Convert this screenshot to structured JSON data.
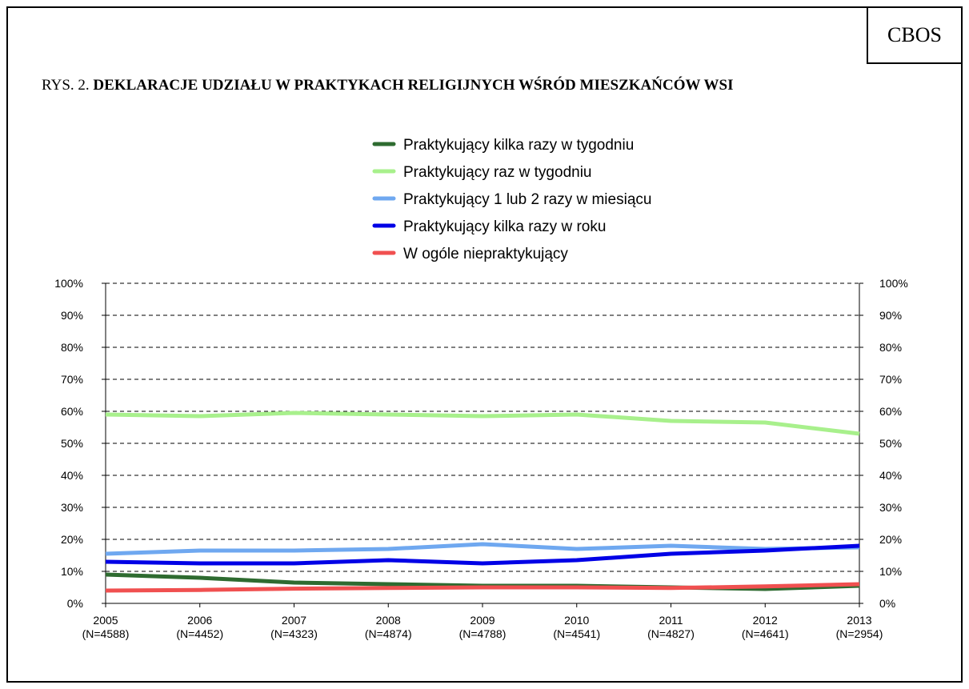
{
  "header": {
    "brand": "CBOS",
    "title_prefix": "RYS. 2.",
    "title_main": "DEKLARACJE UDZIAŁU W PRAKTYKACH RELIGIJNYCH WŚRÓD MIESZKAŃCÓW WSI"
  },
  "chart_data": {
    "type": "line",
    "title": "RYS. 2. DEKLARACJE UDZIAŁU W PRAKTYKACH RELIGIJNYCH WŚRÓD MIESZKAŃCÓW WSI",
    "xlabel": "",
    "ylabel": "",
    "ylim": [
      0,
      100
    ],
    "y_ticks": [
      "0%",
      "10%",
      "20%",
      "30%",
      "40%",
      "50%",
      "60%",
      "70%",
      "80%",
      "90%",
      "100%"
    ],
    "y_ticks_right": true,
    "grid": "horizontal dashed",
    "legend_position": "top-center",
    "categories": [
      "2005",
      "2006",
      "2007",
      "2008",
      "2009",
      "2010",
      "2011",
      "2012",
      "2013"
    ],
    "category_sublabels": [
      "(N=4588)",
      "(N=4452)",
      "(N=4323)",
      "(N=4874)",
      "(N=4788)",
      "(N=4541)",
      "(N=4827)",
      "(N=4641)",
      "(N=2954)"
    ],
    "series": [
      {
        "name": "Praktykujący kilka razy w tygodniu",
        "color": "#2e6b30",
        "values": [
          9,
          8,
          6.5,
          6,
          5.5,
          5.5,
          5,
          4.5,
          5.5
        ]
      },
      {
        "name": "Praktykujący raz w tygodniu",
        "color": "#a8f08c",
        "values": [
          59,
          58.5,
          59.5,
          59,
          58.5,
          59,
          57,
          56.5,
          53
        ]
      },
      {
        "name": "Praktykujący 1 lub 2 razy w miesiącu",
        "color": "#6fa8f0",
        "values": [
          15.5,
          16.5,
          16.5,
          17,
          18.5,
          17,
          18,
          17,
          17.5
        ]
      },
      {
        "name": "Praktykujący kilka razy w roku",
        "color": "#0000e6",
        "values": [
          13,
          12.5,
          12.5,
          13.5,
          12.5,
          13.5,
          15.5,
          16.5,
          18
        ]
      },
      {
        "name": "W ogóle niepraktykujący",
        "color": "#f05050",
        "values": [
          4,
          4.2,
          4.6,
          4.8,
          5,
          5,
          4.8,
          5.3,
          6
        ]
      }
    ]
  }
}
